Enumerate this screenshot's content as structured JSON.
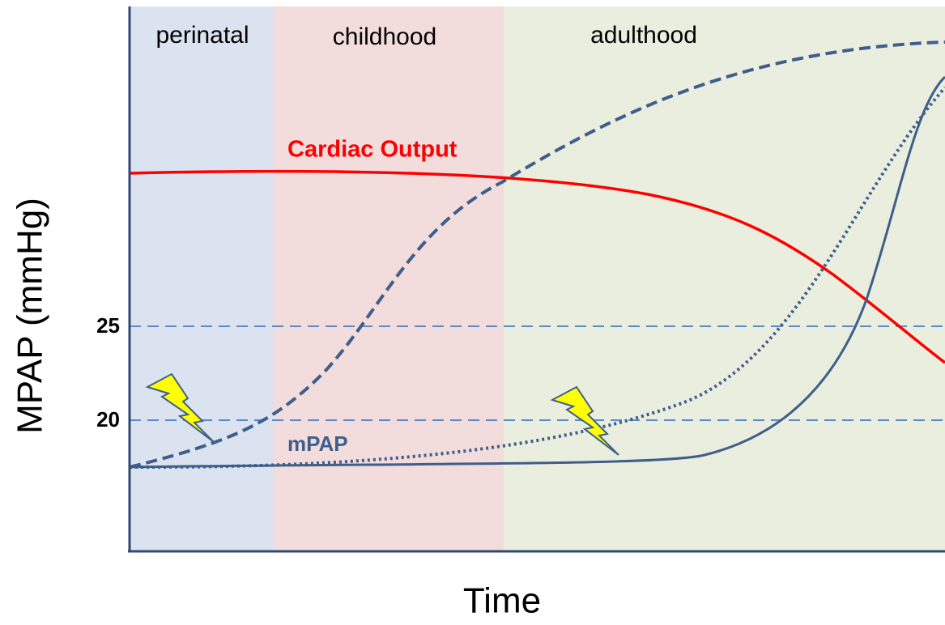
{
  "regions": [
    {
      "label": "perinatal"
    },
    {
      "label": "childhood"
    },
    {
      "label": "adulthood"
    }
  ],
  "curves": {
    "cardiac_output": "Cardiac Output",
    "mpap": "mPAP"
  },
  "y_axis": {
    "label": "MPAP (mmHg)",
    "ticks": [
      25,
      20
    ]
  },
  "x_axis": {
    "label": "Time"
  }
}
